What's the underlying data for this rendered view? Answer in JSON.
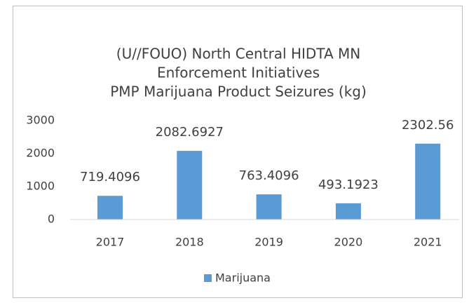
{
  "chart_data": {
    "type": "bar",
    "title": [
      "(U//FOUO) North Central HIDTA MN",
      "Enforcement Initiatives",
      "PMP Marijuana Product Seizures (kg)"
    ],
    "categories": [
      "2017",
      "2018",
      "2019",
      "2020",
      "2021"
    ],
    "series": [
      {
        "name": "Marijuana",
        "color": "#5b9bd5",
        "values": [
          719.4096,
          2082.6927,
          763.4096,
          493.1923,
          2302.56
        ]
      }
    ],
    "ylim": [
      0,
      3000
    ],
    "yticks": [
      0,
      1000,
      2000,
      3000
    ],
    "grid": false,
    "legend": "bottom"
  }
}
